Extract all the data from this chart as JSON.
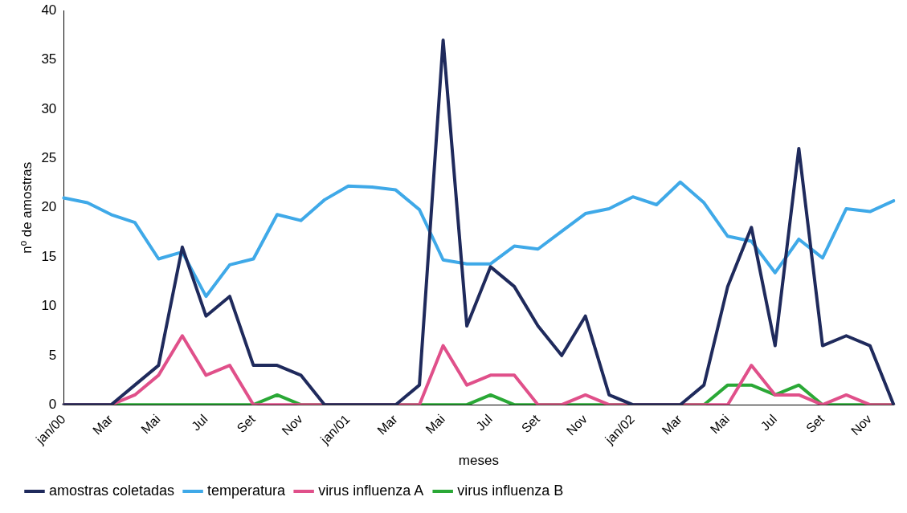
{
  "chart_data": {
    "type": "line",
    "xlabel": "meses",
    "ylabel": "nº de amostras",
    "categories": [
      "jan/00",
      null,
      "Mar",
      null,
      "Mai",
      null,
      "Jul",
      null,
      "Set",
      null,
      "Nov",
      null,
      "jan/01",
      null,
      "Mar",
      null,
      "Mai",
      null,
      "Jul",
      null,
      "Set",
      null,
      "Nov",
      null,
      "jan/02",
      null,
      "Mar",
      null,
      "Mai",
      null,
      "Jul",
      null,
      "Set",
      null,
      "Nov",
      null
    ],
    "series": [
      {
        "name": "amostras coletadas",
        "color": "#1f2a5c",
        "values": [
          0,
          0,
          0,
          2,
          4,
          16,
          9,
          11,
          4,
          4,
          3,
          0,
          0,
          0,
          0,
          2,
          37,
          8,
          14,
          12,
          8,
          5,
          9,
          1,
          0,
          0,
          0,
          2,
          12,
          18,
          6,
          26,
          6,
          7,
          6,
          0
        ]
      },
      {
        "name": "temperatura",
        "color": "#3fa9e8",
        "values": [
          21,
          20.5,
          19.3,
          18.5,
          14.8,
          15.5,
          11,
          14.2,
          14.8,
          19.3,
          18.7,
          20.8,
          22.2,
          22.1,
          21.8,
          19.8,
          14.7,
          14.3,
          14.3,
          16.1,
          15.8,
          17.6,
          19.4,
          19.9,
          21.1,
          20.3,
          22.6,
          20.5,
          17.1,
          16.6,
          13.4,
          16.8,
          14.9,
          19.9,
          19.6,
          20.7
        ]
      },
      {
        "name": "virus influenza A",
        "color": "#e0508a",
        "values": [
          0,
          0,
          0,
          1,
          3,
          7,
          3,
          4,
          0,
          0,
          0,
          0,
          0,
          0,
          0,
          0,
          6,
          2,
          3,
          3,
          0,
          0,
          1,
          0,
          0,
          0,
          0,
          0,
          0,
          4,
          1,
          1,
          0,
          1,
          0,
          0
        ]
      },
      {
        "name": "virus influenza B",
        "color": "#2aa836",
        "values": [
          0,
          0,
          0,
          0,
          0,
          0,
          0,
          0,
          0,
          1,
          0,
          0,
          0,
          0,
          0,
          0,
          0,
          0,
          1,
          0,
          0,
          0,
          0,
          0,
          0,
          0,
          0,
          0,
          2,
          2,
          1,
          2,
          0,
          0,
          0,
          0
        ]
      }
    ],
    "ylim": [
      0,
      40
    ],
    "yticks": [
      0,
      5,
      10,
      15,
      20,
      25,
      30,
      35,
      40
    ],
    "grid": false,
    "legend": "bottom",
    "marker": "none",
    "line_style": "solid"
  }
}
